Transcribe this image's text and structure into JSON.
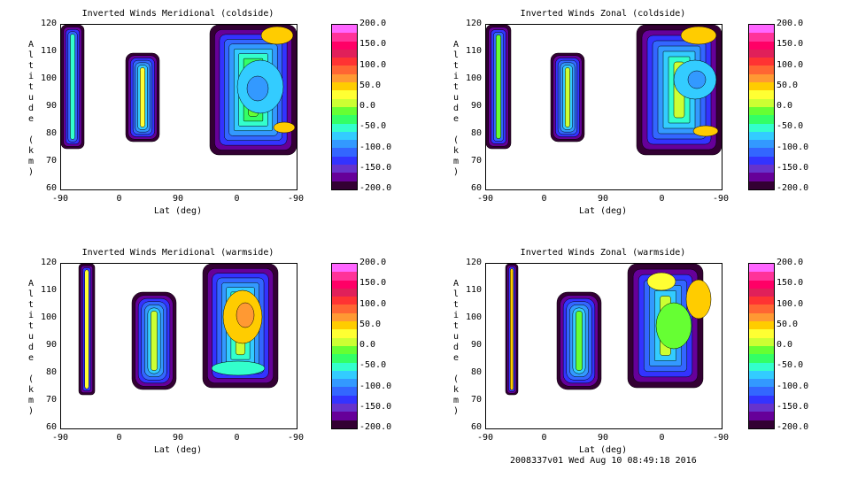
{
  "footer": "2008337v01 Wed Aug 10 08:49:18 2016",
  "colorbar": {
    "ticks": [
      "200.0",
      "150.0",
      "100.0",
      "50.0",
      "0.0",
      "-50.0",
      "-100.0",
      "-150.0",
      "-200.0"
    ],
    "colors": [
      "#ff66ff",
      "#ff3399",
      "#ff0066",
      "#e0205a",
      "#ff3333",
      "#ff6633",
      "#ff9933",
      "#ffcc00",
      "#ffff33",
      "#ccff33",
      "#66ff33",
      "#33ff66",
      "#33ffcc",
      "#33ccff",
      "#3399ff",
      "#3366ff",
      "#3333ff",
      "#6633cc",
      "#660099",
      "#330033"
    ]
  },
  "chart_data": [
    {
      "type": "heatmap",
      "title": "Inverted Winds Meridional (coldside)",
      "xlabel": "Lat (deg)",
      "ylabel": "Altitude (km)",
      "xticks": [
        "-90",
        "0",
        "90",
        "0",
        "-90"
      ],
      "yticks": [
        "120",
        "110",
        "100",
        "90",
        "80",
        "70",
        "60"
      ],
      "ylim": [
        60,
        120
      ],
      "colorbar_range": [
        -200,
        200
      ]
    },
    {
      "type": "heatmap",
      "title": "Inverted Winds Zonal (coldside)",
      "xlabel": "Lat (deg)",
      "ylabel": "Altitude (km)",
      "xticks": [
        "-90",
        "0",
        "90",
        "0",
        "-90"
      ],
      "yticks": [
        "120",
        "110",
        "100",
        "90",
        "80",
        "70",
        "60"
      ],
      "ylim": [
        60,
        120
      ],
      "colorbar_range": [
        -200,
        200
      ]
    },
    {
      "type": "heatmap",
      "title": "Inverted Winds Meridional (warmside)",
      "xlabel": "Lat (deg)",
      "ylabel": "Altitude (km)",
      "xticks": [
        "-90",
        "0",
        "90",
        "0",
        "-90"
      ],
      "yticks": [
        "120",
        "110",
        "100",
        "90",
        "80",
        "70",
        "60"
      ],
      "ylim": [
        60,
        120
      ],
      "colorbar_range": [
        -200,
        200
      ]
    },
    {
      "type": "heatmap",
      "title": "Inverted Winds Zonal (warmside)",
      "xlabel": "Lat (deg)",
      "ylabel": "Altitude (km)",
      "xticks": [
        "-90",
        "0",
        "90",
        "0",
        "-90"
      ],
      "yticks": [
        "120",
        "110",
        "100",
        "90",
        "80",
        "70",
        "60"
      ],
      "ylim": [
        60,
        120
      ],
      "colorbar_range": [
        -200,
        200
      ]
    }
  ]
}
